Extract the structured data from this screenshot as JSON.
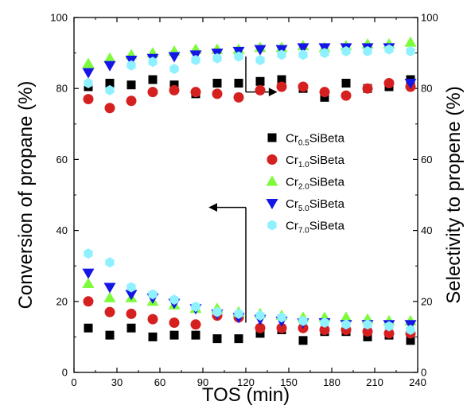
{
  "chart_data": {
    "type": "scatter",
    "xlabel": "TOS (min)",
    "ylabel_left": "Conversion of propane (%)",
    "ylabel_right": "Selectivity to propene (%)",
    "xlim": [
      0,
      240
    ],
    "ylim": [
      0,
      100
    ],
    "xticks": [
      0,
      30,
      60,
      90,
      120,
      150,
      180,
      210,
      240
    ],
    "yticks": [
      0,
      20,
      40,
      60,
      80,
      100
    ],
    "x": [
      10,
      25,
      40,
      55,
      70,
      85,
      100,
      115,
      130,
      145,
      160,
      175,
      190,
      205,
      220,
      235
    ],
    "legend_position": "middle-right",
    "annotations": [
      {
        "type": "arrow",
        "points_to": "right axis",
        "series_group": "selectivity"
      },
      {
        "type": "arrow",
        "points_to": "left axis",
        "series_group": "conversion"
      }
    ],
    "series": [
      {
        "name_prefix": "Cr",
        "name_sub": "0.5",
        "name_suffix": "SiBeta",
        "marker": "square",
        "color": "#000000",
        "selectivity": [
          80.5,
          81.5,
          81,
          82.5,
          81,
          78.5,
          81.5,
          81.5,
          82,
          82.5,
          80,
          77.5,
          81.5,
          80,
          80.5,
          82.5
        ],
        "conversion": [
          12.5,
          10.5,
          12.5,
          10,
          10.5,
          10.5,
          9.5,
          9.5,
          11,
          12,
          9,
          11.5,
          11.5,
          10,
          10.5,
          9
        ]
      },
      {
        "name_prefix": "Cr",
        "name_sub": "1.0",
        "name_suffix": "SiBeta",
        "marker": "circle",
        "color": "#d62020",
        "selectivity": [
          77,
          74.5,
          76.5,
          79,
          79.5,
          79,
          78.5,
          77.5,
          79.5,
          80.5,
          80.5,
          79,
          78,
          80,
          81.5,
          80.5
        ],
        "conversion": [
          20,
          17,
          16.5,
          15,
          14,
          13.5,
          16,
          15.5,
          12.5,
          12.5,
          12.5,
          12,
          12,
          11.5,
          11,
          11
        ]
      },
      {
        "name_prefix": "Cr",
        "name_sub": "2.0",
        "name_suffix": "SiBeta",
        "marker": "triangle-up",
        "color": "#7cfc3a",
        "selectivity": [
          87,
          88.5,
          89.5,
          90,
          90.5,
          91,
          91,
          91,
          91.5,
          91.5,
          92,
          91.5,
          92,
          92.5,
          92.5,
          93
        ],
        "conversion": [
          25,
          21,
          21,
          20,
          19,
          18,
          18,
          17,
          16.5,
          16,
          15.5,
          15.5,
          15.5,
          15,
          14.5,
          14.5
        ]
      },
      {
        "name_prefix": "Cr",
        "name_sub": "5.0",
        "name_suffix": "SiBeta",
        "marker": "triangle-down",
        "color": "#1515e6",
        "selectivity": [
          84.5,
          86.5,
          88,
          88.5,
          89,
          89.5,
          90,
          90.5,
          91,
          91,
          91.5,
          91.5,
          91.5,
          91.5,
          91.5,
          81.5
        ],
        "conversion": [
          28,
          24,
          22,
          21,
          19.5,
          18,
          16.5,
          15.5,
          15,
          14.5,
          14,
          14,
          13.5,
          13.5,
          13.5,
          13.5
        ]
      },
      {
        "name_prefix": "Cr",
        "name_sub": "7.0",
        "name_suffix": "SiBeta",
        "marker": "hexagon",
        "color": "#8ff0ff",
        "selectivity": [
          81.5,
          79.5,
          86.5,
          87.5,
          85.5,
          88,
          88.5,
          89,
          88,
          89.5,
          89.5,
          90,
          90.5,
          90.5,
          91,
          90.5
        ],
        "conversion": [
          33.5,
          31,
          24,
          22,
          20.5,
          18.5,
          17,
          16.5,
          16,
          15.5,
          14.5,
          14,
          13.5,
          13.5,
          13,
          12
        ]
      }
    ]
  }
}
